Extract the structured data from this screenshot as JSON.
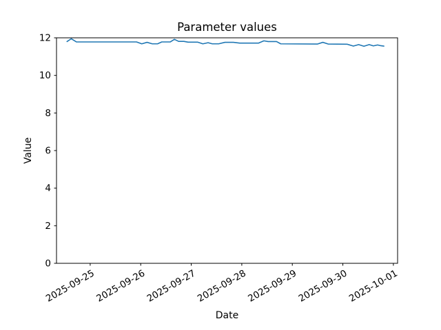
{
  "figure": {
    "background": "#ffffff",
    "axis_color": "#000000",
    "text_color": "#000000"
  },
  "chart_data": {
    "type": "line",
    "title": "Parameter values",
    "xlabel": "Date",
    "ylabel": "Value",
    "grid": false,
    "legend": null,
    "ylim": [
      0,
      12
    ],
    "y_ticks": [
      0,
      2,
      4,
      6,
      8,
      10,
      12
    ],
    "xlim": [
      "2025-09-24T08:00",
      "2025-10-01T02:00"
    ],
    "x_ticks": [
      "2025-09-25",
      "2025-09-26",
      "2025-09-27",
      "2025-09-28",
      "2025-09-29",
      "2025-09-30",
      "2025-10-01"
    ],
    "x_tick_rotation_deg": 30,
    "series": [
      {
        "name": "",
        "color": "#1f77b4",
        "line_width": 1.6,
        "x": [
          "2025-09-24T13:00",
          "2025-09-24T15:00",
          "2025-09-24T17:30",
          "2025-09-25T06:00",
          "2025-09-25T22:00",
          "2025-09-26T00:30",
          "2025-09-26T03:00",
          "2025-09-26T05:30",
          "2025-09-26T08:00",
          "2025-09-26T10:00",
          "2025-09-26T14:00",
          "2025-09-26T16:00",
          "2025-09-26T18:00",
          "2025-09-26T20:30",
          "2025-09-26T22:30",
          "2025-09-27T03:00",
          "2025-09-27T05:30",
          "2025-09-27T08:00",
          "2025-09-27T10:00",
          "2025-09-27T13:00",
          "2025-09-27T16:00",
          "2025-09-27T20:00",
          "2025-09-27T23:00",
          "2025-09-28T08:00",
          "2025-09-28T10:30",
          "2025-09-28T12:30",
          "2025-09-28T16:30",
          "2025-09-28T18:30",
          "2025-09-29T12:00",
          "2025-09-29T14:30",
          "2025-09-29T17:00",
          "2025-09-30T02:00",
          "2025-09-30T05:00",
          "2025-09-30T07:30",
          "2025-09-30T10:00",
          "2025-09-30T12:30",
          "2025-09-30T14:30",
          "2025-09-30T16:30",
          "2025-09-30T18:00",
          "2025-09-30T19:30"
        ],
        "y": [
          11.8,
          11.95,
          11.78,
          11.78,
          11.78,
          11.68,
          11.76,
          11.68,
          11.68,
          11.78,
          11.78,
          11.92,
          11.81,
          11.81,
          11.77,
          11.77,
          11.68,
          11.74,
          11.68,
          11.68,
          11.76,
          11.76,
          11.72,
          11.72,
          11.84,
          11.8,
          11.8,
          11.68,
          11.67,
          11.76,
          11.67,
          11.66,
          11.56,
          11.64,
          11.55,
          11.64,
          11.57,
          11.62,
          11.58,
          11.56
        ]
      }
    ]
  }
}
